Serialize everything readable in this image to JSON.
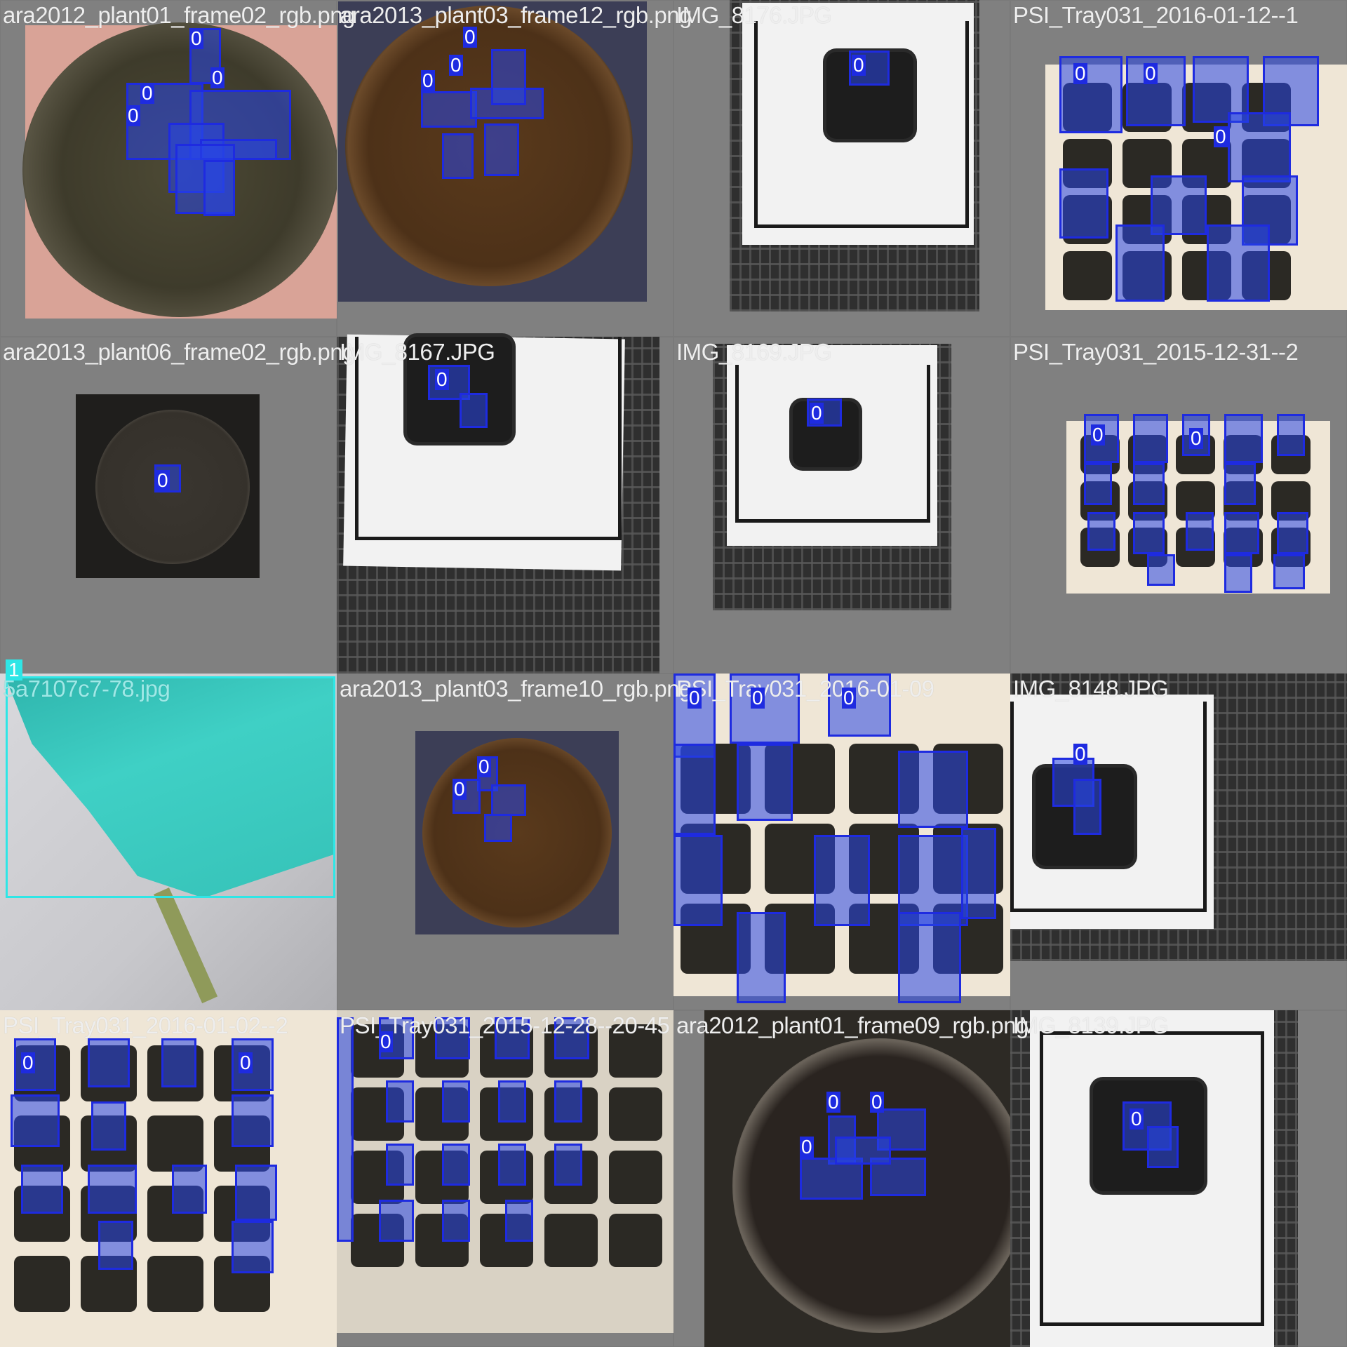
{
  "mosaic": {
    "tiles": [
      {
        "label": "ara2012_plant01_frame02_rgb.png",
        "scene": "round-pot-pink"
      },
      {
        "label": "ara2013_plant03_frame12_rgb.png",
        "scene": "round-pot-brown"
      },
      {
        "label": "IMG_8176.JPG",
        "scene": "square-pot-paper"
      },
      {
        "label": "PSI_Tray031_2016-01-12--1",
        "scene": "tray"
      },
      {
        "label": "ara2013_plant06_frame02_rgb.png",
        "scene": "round-pot-dark-small"
      },
      {
        "label": "IMG_8167.JPG",
        "scene": "square-pot-paper"
      },
      {
        "label": "IMG_8169.JPG",
        "scene": "square-pot-paper"
      },
      {
        "label": "PSI_Tray031_2015-12-31--2",
        "scene": "tray"
      },
      {
        "label": "5a7107c7-78.jpg",
        "scene": "leaf-cyan",
        "class_tag": "1"
      },
      {
        "label": "ara2013_plant03_frame10_rgb.png",
        "scene": "round-pot-brown-small"
      },
      {
        "label": "PSI_Tray031_2016-01-09",
        "scene": "tray-zoom"
      },
      {
        "label": "IMG_8148.JPG",
        "scene": "square-pot-paper"
      },
      {
        "label": "PSI_Tray031_2016-01-02--2",
        "scene": "tray"
      },
      {
        "label": "PSI_Tray031_2015-12-28--20-45",
        "scene": "tray"
      },
      {
        "label": "ara2012_plant01_frame09_rgb.png",
        "scene": "round-pot-dark"
      },
      {
        "label": "IMG_8139.JPG",
        "scene": "square-pot-paper"
      }
    ],
    "box_class_label": "0",
    "colors": {
      "class0": "#1e2be0",
      "class1": "#2ee6e6",
      "background": "#808080"
    }
  }
}
